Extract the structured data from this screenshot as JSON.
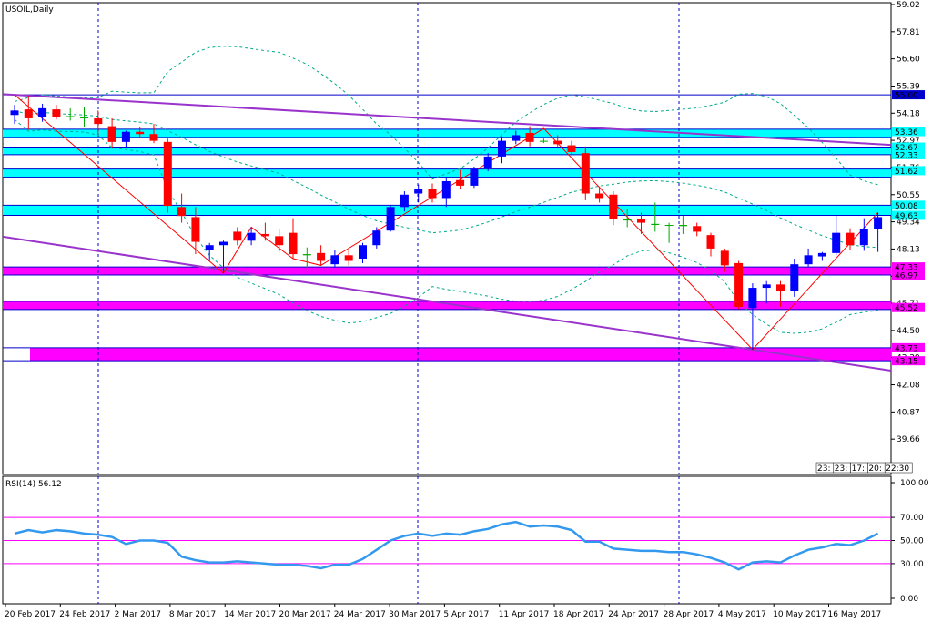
{
  "chart_data": [
    {
      "type": "candlestick",
      "title": "USOIL,Daily",
      "y_ticks": [
        59.02,
        57.81,
        56.6,
        55.39,
        54.18,
        52.97,
        51.76,
        50.55,
        49.34,
        48.13,
        46.92,
        45.71,
        44.5,
        43.29,
        42.08,
        40.87,
        39.66
      ],
      "ylim": [
        38.45,
        59.02
      ],
      "x_ticks": [
        "20 Feb 2017",
        "24 Feb 2017",
        "2 Mar 2017",
        "8 Mar 2017",
        "14 Mar 2017",
        "20 Mar 2017",
        "24 Mar 2017",
        "30 Mar 2017",
        "5 Apr 2017",
        "11 Apr 2017",
        "18 Apr 2017",
        "24 Apr 2017",
        "28 Apr 2017",
        "4 May 2017",
        "10 May 2017",
        "16 May 2017"
      ],
      "candles": [
        {
          "o": 54.1,
          "h": 54.55,
          "l": 53.7,
          "c": 54.3
        },
        {
          "o": 54.35,
          "h": 54.95,
          "l": 53.45,
          "c": 53.95
        },
        {
          "o": 54.0,
          "h": 54.6,
          "l": 53.8,
          "c": 54.4
        },
        {
          "o": 54.35,
          "h": 54.55,
          "l": 53.9,
          "c": 54.0
        },
        {
          "o": 54.05,
          "h": 54.4,
          "l": 53.85,
          "c": 54.0
        },
        {
          "o": 54.0,
          "h": 54.45,
          "l": 53.55,
          "c": 53.95
        },
        {
          "o": 53.95,
          "h": 54.3,
          "l": 53.25,
          "c": 53.7
        },
        {
          "o": 53.6,
          "h": 53.95,
          "l": 52.6,
          "c": 52.9
        },
        {
          "o": 52.9,
          "h": 53.4,
          "l": 52.65,
          "c": 53.35
        },
        {
          "o": 53.35,
          "h": 53.55,
          "l": 53.1,
          "c": 53.25
        },
        {
          "o": 53.25,
          "h": 53.7,
          "l": 52.85,
          "c": 52.95
        },
        {
          "o": 52.9,
          "h": 53.05,
          "l": 49.75,
          "c": 50.05
        },
        {
          "o": 50.0,
          "h": 50.6,
          "l": 49.3,
          "c": 49.6
        },
        {
          "o": 49.55,
          "h": 50.0,
          "l": 47.9,
          "c": 48.45
        },
        {
          "o": 48.1,
          "h": 48.4,
          "l": 47.6,
          "c": 48.3
        },
        {
          "o": 48.3,
          "h": 48.5,
          "l": 47.05,
          "c": 48.45
        },
        {
          "o": 48.9,
          "h": 49.1,
          "l": 48.3,
          "c": 48.5
        },
        {
          "o": 48.5,
          "h": 49.1,
          "l": 48.3,
          "c": 48.85
        },
        {
          "o": 48.8,
          "h": 49.3,
          "l": 48.5,
          "c": 48.7
        },
        {
          "o": 48.7,
          "h": 49.0,
          "l": 48.0,
          "c": 48.3
        },
        {
          "o": 48.85,
          "h": 49.5,
          "l": 47.7,
          "c": 47.9
        },
        {
          "o": 47.9,
          "h": 48.2,
          "l": 47.25,
          "c": 47.85
        },
        {
          "o": 47.95,
          "h": 48.3,
          "l": 47.4,
          "c": 47.6
        },
        {
          "o": 47.45,
          "h": 48.1,
          "l": 47.3,
          "c": 47.85
        },
        {
          "o": 47.85,
          "h": 48.1,
          "l": 47.4,
          "c": 47.6
        },
        {
          "o": 47.7,
          "h": 48.4,
          "l": 47.5,
          "c": 48.3
        },
        {
          "o": 48.3,
          "h": 49.1,
          "l": 48.15,
          "c": 48.95
        },
        {
          "o": 48.95,
          "h": 50.1,
          "l": 48.9,
          "c": 50.0
        },
        {
          "o": 50.0,
          "h": 50.7,
          "l": 49.8,
          "c": 50.55
        },
        {
          "o": 50.6,
          "h": 51.0,
          "l": 50.2,
          "c": 50.8
        },
        {
          "o": 50.8,
          "h": 51.05,
          "l": 50.2,
          "c": 50.4
        },
        {
          "o": 50.4,
          "h": 51.3,
          "l": 50.0,
          "c": 51.15
        },
        {
          "o": 51.2,
          "h": 51.65,
          "l": 50.8,
          "c": 50.95
        },
        {
          "o": 50.95,
          "h": 51.8,
          "l": 50.85,
          "c": 51.7
        },
        {
          "o": 51.75,
          "h": 52.4,
          "l": 51.6,
          "c": 52.25
        },
        {
          "o": 52.25,
          "h": 53.15,
          "l": 51.95,
          "c": 52.95
        },
        {
          "o": 52.95,
          "h": 53.4,
          "l": 52.8,
          "c": 53.2
        },
        {
          "o": 53.3,
          "h": 53.6,
          "l": 52.7,
          "c": 52.9
        },
        {
          "o": 52.95,
          "h": 53.05,
          "l": 52.85,
          "c": 52.95
        },
        {
          "o": 52.95,
          "h": 53.2,
          "l": 52.7,
          "c": 52.8
        },
        {
          "o": 52.75,
          "h": 52.95,
          "l": 52.3,
          "c": 52.45
        },
        {
          "o": 52.4,
          "h": 52.7,
          "l": 50.3,
          "c": 50.6
        },
        {
          "o": 50.6,
          "h": 50.9,
          "l": 50.2,
          "c": 50.4
        },
        {
          "o": 50.55,
          "h": 50.7,
          "l": 49.2,
          "c": 49.45
        },
        {
          "o": 49.4,
          "h": 49.9,
          "l": 49.1,
          "c": 49.45
        },
        {
          "o": 49.45,
          "h": 49.75,
          "l": 48.8,
          "c": 49.3
        },
        {
          "o": 49.25,
          "h": 50.2,
          "l": 48.9,
          "c": 49.2
        },
        {
          "o": 49.2,
          "h": 49.3,
          "l": 48.4,
          "c": 49.2
        },
        {
          "o": 49.2,
          "h": 49.6,
          "l": 48.8,
          "c": 49.15
        },
        {
          "o": 49.15,
          "h": 49.3,
          "l": 48.7,
          "c": 48.9
        },
        {
          "o": 48.75,
          "h": 48.85,
          "l": 47.8,
          "c": 48.15
        },
        {
          "o": 48.05,
          "h": 48.15,
          "l": 47.1,
          "c": 47.4
        },
        {
          "o": 47.5,
          "h": 47.6,
          "l": 45.45,
          "c": 45.55
        },
        {
          "o": 45.5,
          "h": 46.6,
          "l": 43.65,
          "c": 46.4
        },
        {
          "o": 46.4,
          "h": 46.7,
          "l": 45.7,
          "c": 46.55
        },
        {
          "o": 46.55,
          "h": 46.7,
          "l": 45.55,
          "c": 46.25
        },
        {
          "o": 46.25,
          "h": 47.7,
          "l": 46.0,
          "c": 47.45
        },
        {
          "o": 47.45,
          "h": 48.15,
          "l": 47.35,
          "c": 47.85
        },
        {
          "o": 47.8,
          "h": 48.0,
          "l": 47.6,
          "c": 47.95
        },
        {
          "o": 47.95,
          "h": 49.65,
          "l": 47.85,
          "c": 48.85
        },
        {
          "o": 48.85,
          "h": 49.05,
          "l": 48.1,
          "c": 48.3
        },
        {
          "o": 48.3,
          "h": 49.5,
          "l": 48.05,
          "c": 49.0
        },
        {
          "o": 49.0,
          "h": 49.75,
          "l": 48.0,
          "c": 49.55
        }
      ],
      "zones": [
        {
          "upper": 53.36,
          "lower": 53.21,
          "color": "#00ffff",
          "labels": [
            "53.36"
          ]
        },
        {
          "upper": 52.67,
          "lower": 52.33,
          "color": "#00ffff",
          "labels": [
            "52.67",
            "52.33"
          ]
        },
        {
          "upper": 51.62,
          "lower": 51.4,
          "color": "#00ffff",
          "labels": [
            "51.62"
          ]
        },
        {
          "upper": 50.08,
          "lower": 49.63,
          "color": "#00ffff",
          "labels": [
            "50.08",
            "49.63"
          ]
        },
        {
          "upper": 47.33,
          "lower": 46.97,
          "color": "#ff00ff",
          "labels": [
            "47.33",
            "46.97"
          ]
        },
        {
          "upper": 45.71,
          "lower": 45.52,
          "color": "#ff00ff",
          "labels": [
            "45.52"
          ]
        },
        {
          "upper": 43.73,
          "lower": 43.15,
          "color": "#ff00ff",
          "labels": [
            "43.73",
            "43.15"
          ]
        }
      ],
      "horizontal_lines": [
        {
          "value": 55.0,
          "label": "55.00"
        }
      ],
      "trendlines": [
        {
          "from": [
            0,
            55.0
          ],
          "to": [
            62,
            52.8
          ],
          "color": "#9933cc"
        },
        {
          "from": [
            0,
            48.6
          ],
          "to": [
            62,
            42.8
          ],
          "color": "#9933cc"
        }
      ],
      "zigzag": [
        [
          0,
          55.0
        ],
        [
          15,
          47.05
        ],
        [
          17,
          49.1
        ],
        [
          20,
          47.7
        ],
        [
          22,
          47.4
        ],
        [
          38,
          53.5
        ],
        [
          53,
          43.65
        ],
        [
          62,
          49.75
        ]
      ],
      "timer": [
        "23:",
        "23:",
        "17:",
        "20:",
        "22:30"
      ],
      "colors": {
        "bull": "#0000ff",
        "bear": "#ff0000",
        "doji": "#00aa00",
        "band": "#00aa88",
        "grid": "#0000cc"
      }
    },
    {
      "type": "line",
      "title": "RSI(14) 56.12",
      "y_ticks": [
        100.0,
        70.0,
        50.0,
        30.0,
        0.0
      ],
      "ylim": [
        0,
        100
      ],
      "levels": [
        70,
        50,
        30
      ],
      "series": [
        {
          "values": [
            56,
            59,
            57,
            59,
            58,
            56,
            55,
            53,
            47,
            50,
            50,
            48,
            36,
            33,
            31,
            31,
            32,
            31,
            30,
            29,
            29,
            28,
            26,
            29,
            29,
            34,
            42,
            50,
            54,
            56,
            54,
            56,
            55,
            58,
            60,
            64,
            66,
            62,
            63,
            62,
            59,
            49,
            49,
            43,
            42,
            41,
            41,
            40,
            40,
            38,
            35,
            31,
            25,
            31,
            32,
            31,
            37,
            42,
            44,
            47,
            46,
            50,
            56
          ]
        }
      ]
    }
  ]
}
